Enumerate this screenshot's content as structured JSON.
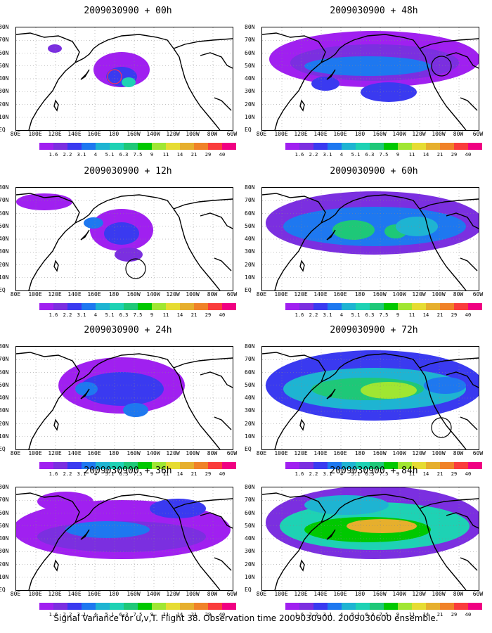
{
  "panels": [
    {
      "title": "2009030900 + 00h",
      "circle": "red"
    },
    {
      "title": "2009030900 + 48h",
      "circle": "black"
    },
    {
      "title": "2009030900 + 12h",
      "circle": "black"
    },
    {
      "title": "2009030900 + 60h",
      "circle": "none"
    },
    {
      "title": "2009030900 + 24h",
      "circle": "none"
    },
    {
      "title": "2009030900 + 72h",
      "circle": "black"
    },
    {
      "title": "2009030900 + 36h",
      "circle": "none"
    },
    {
      "title": "2009030900 + 84h",
      "circle": "none"
    }
  ],
  "lat_labels": [
    "80N",
    "70N",
    "60N",
    "50N",
    "40N",
    "30N",
    "20N",
    "10N",
    "EQ"
  ],
  "lon_labels": [
    "80E",
    "100E",
    "120E",
    "140E",
    "160E",
    "180",
    "160W",
    "140W",
    "120W",
    "100W",
    "80W",
    "60W"
  ],
  "colorbar": {
    "labels": [
      "1.6",
      "2.2",
      "3.1",
      "4",
      "5.1",
      "6.3",
      "7.5",
      "9",
      "11",
      "14",
      "21",
      "29",
      "40"
    ],
    "colors": [
      "#a020f0",
      "#7b2fe0",
      "#3a3af0",
      "#1e78f0",
      "#1eb4d2",
      "#1ed2b4",
      "#1ec878",
      "#00c800",
      "#a0e632",
      "#e6dc32",
      "#e6af2d",
      "#f08228",
      "#fa3c3c",
      "#f00082"
    ]
  },
  "footer": "Signal Variance for u,v,T. Flight 38. Observation time 2009030900. 2009030600 ensemble."
}
